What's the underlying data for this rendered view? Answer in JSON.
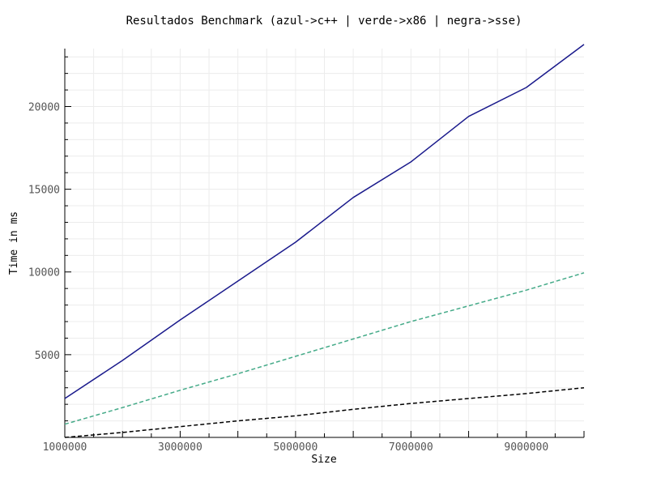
{
  "chart_data": {
    "type": "line",
    "title": "Resultados Benchmark (azul->c++ | verde->x86 | negra->sse)",
    "xlabel": "Size",
    "ylabel": "Time in ms",
    "xlim": [
      1000000,
      10000000
    ],
    "ylim": [
      0,
      23500
    ],
    "x_ticks": [
      1000000,
      3000000,
      5000000,
      7000000,
      9000000
    ],
    "x_tick_labels": [
      "1000000",
      "3000000",
      "5000000",
      "7000000",
      "9000000"
    ],
    "y_ticks": [
      5000,
      10000,
      15000,
      20000
    ],
    "y_tick_labels": [
      "5000",
      "10000",
      "15000",
      "20000"
    ],
    "grid": true,
    "legend": "none",
    "x": [
      1000000,
      2000000,
      3000000,
      4000000,
      5000000,
      6000000,
      7000000,
      8000000,
      9000000,
      10000000
    ],
    "series": [
      {
        "color": "#1a1a8c",
        "style": "solid",
        "values": [
          2350,
          4650,
          7100,
          9450,
          11800,
          14500,
          16650,
          19400,
          21150,
          23750
        ]
      },
      {
        "color": "#44aa88",
        "style": "dashed",
        "values": [
          800,
          1800,
          2850,
          3850,
          4900,
          5950,
          7000,
          7950,
          8900,
          9950
        ]
      },
      {
        "color": "#000000",
        "style": "dashed",
        "values": [
          0,
          300,
          650,
          1000,
          1300,
          1700,
          2050,
          2350,
          2650,
          3000
        ]
      }
    ]
  }
}
